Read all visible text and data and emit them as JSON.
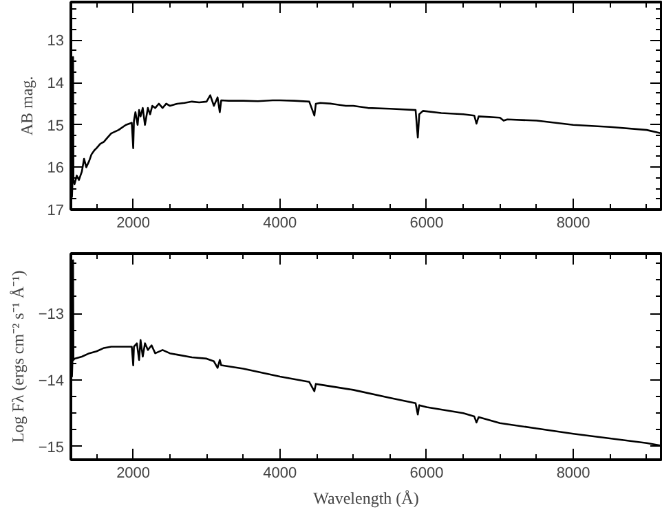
{
  "chart_data": [
    {
      "type": "line",
      "ylabel": "AB mag.",
      "xlim": [
        1150,
        9200
      ],
      "ylim": [
        17,
        12.1
      ],
      "xticks": [
        2000,
        4000,
        6000,
        8000
      ],
      "yticks": [
        13,
        14,
        15,
        16,
        17
      ],
      "grid": false,
      "series": [
        {
          "color": "#000000",
          "x": [
            1155,
            1165,
            1175,
            1180,
            1185,
            1200,
            1230,
            1260,
            1300,
            1330,
            1360,
            1400,
            1430,
            1470,
            1500,
            1550,
            1600,
            1650,
            1700,
            1800,
            1900,
            1980,
            2000,
            2010,
            2030,
            2060,
            2080,
            2100,
            2130,
            2160,
            2200,
            2230,
            2260,
            2300,
            2350,
            2400,
            2450,
            2500,
            2600,
            2700,
            2800,
            2900,
            3000,
            3050,
            3100,
            3150,
            3180,
            3200,
            3300,
            3500,
            3700,
            3900,
            4000,
            4200,
            4400,
            4470,
            4490,
            4550,
            4700,
            4900,
            5000,
            5200,
            5500,
            5850,
            5880,
            5900,
            5950,
            6200,
            6500,
            6650,
            6680,
            6710,
            7000,
            7050,
            7100,
            7500,
            8000,
            8500,
            9000,
            9200
          ],
          "values": [
            16.5,
            16.7,
            16.2,
            13.4,
            16.3,
            16.4,
            16.2,
            16.3,
            16.1,
            15.8,
            16.0,
            15.85,
            15.7,
            15.6,
            15.55,
            15.45,
            15.4,
            15.3,
            15.2,
            15.12,
            15.0,
            14.95,
            15.55,
            14.9,
            14.7,
            15.0,
            14.65,
            14.8,
            14.6,
            15.0,
            14.6,
            14.75,
            14.55,
            14.6,
            14.5,
            14.6,
            14.5,
            14.55,
            14.5,
            14.48,
            14.45,
            14.47,
            14.45,
            14.3,
            14.55,
            14.35,
            14.7,
            14.42,
            14.43,
            14.43,
            14.44,
            14.42,
            14.42,
            14.43,
            14.45,
            14.78,
            14.5,
            14.48,
            14.5,
            14.55,
            14.55,
            14.6,
            14.62,
            14.65,
            15.3,
            14.75,
            14.67,
            14.72,
            14.75,
            14.78,
            14.97,
            14.8,
            14.83,
            14.9,
            14.87,
            14.9,
            15.0,
            15.05,
            15.12,
            15.2
          ]
        }
      ]
    },
    {
      "type": "line",
      "xlabel": "Wavelength (Å)",
      "ylabel": "Log Fλ (ergs cm⁻² s⁻¹ Å⁻¹)",
      "xlim": [
        1150,
        9200
      ],
      "ylim": [
        -15.2,
        -12.1
      ],
      "xticks": [
        2000,
        4000,
        6000,
        8000
      ],
      "yticks": [
        -15,
        -14,
        -13
      ],
      "grid": false,
      "series": [
        {
          "color": "#000000",
          "x": [
            1155,
            1165,
            1175,
            1180,
            1185,
            1200,
            1300,
            1400,
            1500,
            1600,
            1700,
            1800,
            1900,
            1980,
            2000,
            2010,
            2050,
            2080,
            2100,
            2130,
            2160,
            2200,
            2250,
            2300,
            2400,
            2500,
            2600,
            2800,
            3000,
            3100,
            3150,
            3180,
            3200,
            3500,
            4000,
            4400,
            4470,
            4490,
            4600,
            5000,
            5500,
            5850,
            5880,
            5900,
            6000,
            6500,
            6650,
            6680,
            6710,
            7000,
            7500,
            8000,
            8500,
            9000,
            9200
          ],
          "values": [
            -13.65,
            -13.95,
            -13.6,
            -12.2,
            -13.7,
            -13.68,
            -13.65,
            -13.6,
            -13.57,
            -13.52,
            -13.5,
            -13.5,
            -13.5,
            -13.5,
            -13.78,
            -13.5,
            -13.45,
            -13.7,
            -13.4,
            -13.65,
            -13.45,
            -13.55,
            -13.48,
            -13.6,
            -13.55,
            -13.6,
            -13.62,
            -13.66,
            -13.68,
            -13.72,
            -13.82,
            -13.7,
            -13.78,
            -13.83,
            -13.95,
            -14.03,
            -14.17,
            -14.06,
            -14.08,
            -14.15,
            -14.27,
            -14.35,
            -14.52,
            -14.38,
            -14.41,
            -14.5,
            -14.55,
            -14.64,
            -14.56,
            -14.65,
            -14.73,
            -14.81,
            -14.88,
            -14.95,
            -14.99
          ]
        }
      ]
    }
  ]
}
